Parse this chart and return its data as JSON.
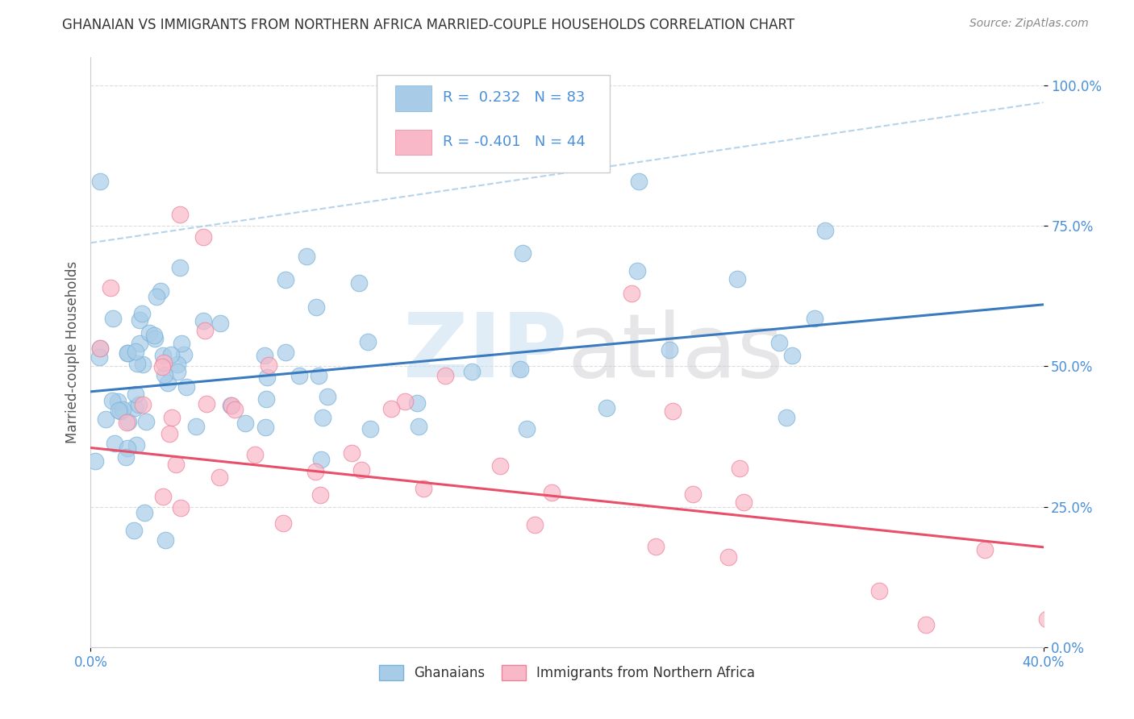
{
  "title": "GHANAIAN VS IMMIGRANTS FROM NORTHERN AFRICA MARRIED-COUPLE HOUSEHOLDS CORRELATION CHART",
  "source": "Source: ZipAtlas.com",
  "ylabel": "Married-couple Households",
  "yticks_labels": [
    "0.0%",
    "25.0%",
    "50.0%",
    "75.0%",
    "100.0%"
  ],
  "ytick_vals": [
    0.0,
    0.25,
    0.5,
    0.75,
    1.0
  ],
  "xlim": [
    0.0,
    0.4
  ],
  "ylim": [
    0.0,
    1.05
  ],
  "blue_color": "#a8cce8",
  "blue_edge_color": "#7ab3d9",
  "pink_color": "#f9b8c8",
  "pink_edge_color": "#f08098",
  "blue_line_color": "#3a7bbf",
  "pink_line_color": "#e8506a",
  "dash_line_color": "#a8cce8",
  "blue_line_y0": 0.455,
  "blue_line_y1": 0.61,
  "pink_line_y0": 0.355,
  "pink_line_y1": 0.178,
  "dash_line_y0": 0.72,
  "dash_line_y1": 0.97,
  "legend_r1_text": "R =  0.232   N = 83",
  "legend_r2_text": "R = -0.401   N = 44",
  "watermark_zip": "ZIP",
  "watermark_atlas": "atlas"
}
